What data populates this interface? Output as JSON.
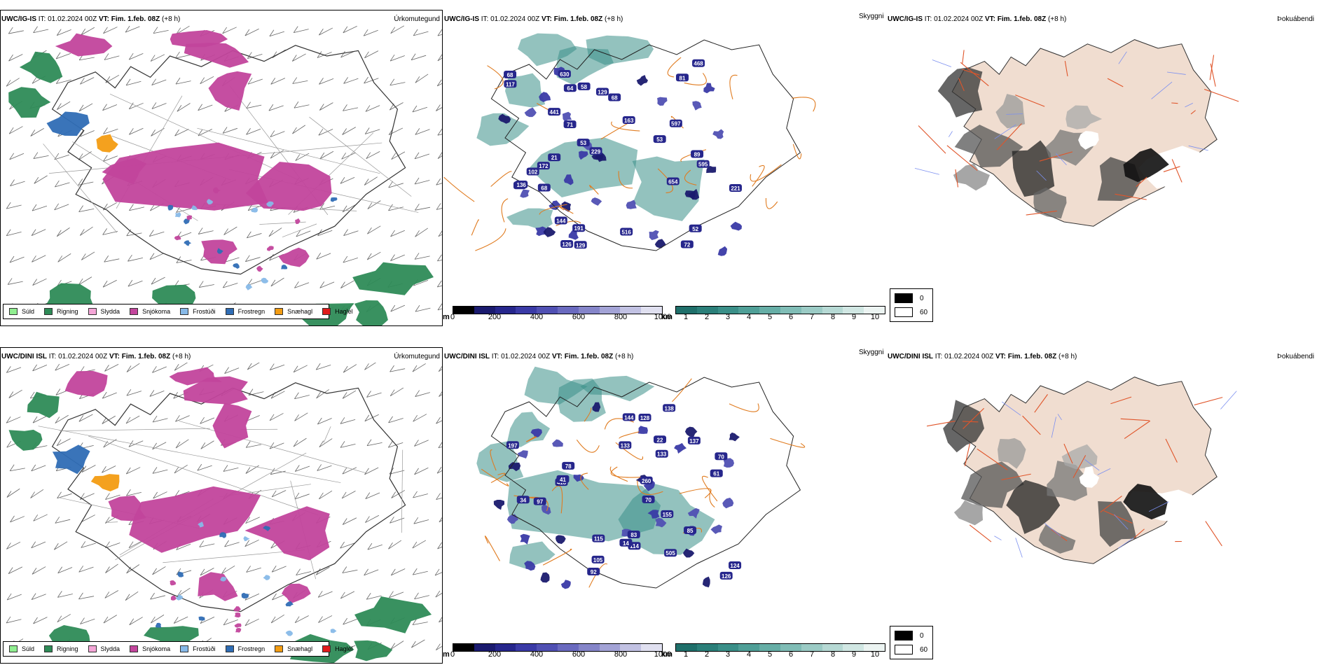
{
  "rows": [
    {
      "precip": {
        "model": "UWC/IG-IS",
        "it": " IT: 01.02.2024 00Z ",
        "vt_label": "VT: Fim. 1.feb. 08Z",
        "lead": " (+8 h)",
        "title_right": "Úrkomutegund"
      },
      "vis": {
        "model": "UWC/IG-IS",
        "it": " IT: 01.02.2024 00Z ",
        "vt_label": "VT: Fim. 1.feb. 08Z",
        "lead": " (+8 h)",
        "title_right": "Skyggni",
        "labels": [
          "102",
          "68",
          "144",
          "163",
          "81",
          "71",
          "89",
          "68",
          "129",
          "53",
          "126",
          "221",
          "229",
          "468",
          "58",
          "129",
          "11",
          "72",
          "68",
          "64",
          "53",
          "172",
          "52",
          "191",
          "597",
          "117",
          "136",
          "516",
          "441",
          "630",
          "595",
          "654",
          "21"
        ]
      },
      "fog": {
        "model": "UWC/IG-IS",
        "it": " IT: 01.02.2024 00Z ",
        "vt_label": "VT: Fim. 1.feb. 08Z",
        "lead": " (+8 h)",
        "title_right": "Þokuábendi"
      }
    },
    {
      "precip": {
        "model": "UWC/DINI ISL",
        "it": " IT: 01.02.2024 00Z ",
        "vt_label": "VT: Fim. 1.feb. 08Z",
        "lead": " (+8 h)",
        "title_right": "Úrkomutegund"
      },
      "vis": {
        "model": "UWC/DINI ISL",
        "it": " IT: 01.02.2024 00Z ",
        "vt_label": "VT: Fim. 1.feb. 08Z",
        "lead": " (+8 h)",
        "title_right": "Skyggni",
        "labels": [
          "83",
          "97",
          "70",
          "78",
          "128",
          "115",
          "144",
          "92",
          "126",
          "133",
          "137",
          "260",
          "197",
          "418",
          "155",
          "70",
          "124",
          "114",
          "505",
          "105",
          "133",
          "138",
          "85",
          "61",
          "41",
          "14",
          "34",
          "22"
        ]
      },
      "fog": {
        "model": "UWC/DINI ISL",
        "it": " IT: 01.02.2024 00Z ",
        "vt_label": "VT: Fim. 1.feb. 08Z",
        "lead": " (+8 h)",
        "title_right": "Þokuábendi"
      }
    }
  ],
  "precip_legend": [
    {
      "label": "Súld",
      "color": "#90ee90"
    },
    {
      "label": "Rigning",
      "color": "#2e8b57"
    },
    {
      "label": "Slydda",
      "color": "#f4a6d7"
    },
    {
      "label": "Snjókoma",
      "color": "#c2459c"
    },
    {
      "label": "Frostúði",
      "color": "#87b9e8"
    },
    {
      "label": "Frostregn",
      "color": "#2f6db5"
    },
    {
      "label": "Snæhagl",
      "color": "#f39c12"
    },
    {
      "label": "Haglél",
      "color": "#e01b1b"
    }
  ],
  "vis_m_scale": {
    "unit": "m",
    "ticks": [
      "0",
      "200",
      "400",
      "600",
      "800",
      "1000"
    ],
    "colors": [
      "#000000",
      "#1a1a6e",
      "#26268c",
      "#3a3aa6",
      "#5050b3",
      "#6a6abf",
      "#8585c9",
      "#a3a3d6",
      "#c2c2e3",
      "#e0e0f0"
    ]
  },
  "vis_km_scale": {
    "unit": "km",
    "ticks": [
      "1",
      "2",
      "3",
      "4",
      "5",
      "6",
      "7",
      "8",
      "9",
      "10"
    ],
    "colors": [
      "#1f6f6a",
      "#2b7f79",
      "#3a8f88",
      "#4f9f97",
      "#66aea6",
      "#80bdb6",
      "#9bcbc5",
      "#b6d9d4",
      "#d1e7e3",
      "#ecf4f2"
    ]
  },
  "fog_legend": {
    "items": [
      {
        "label": "0",
        "color": "#000000"
      },
      {
        "label": "60",
        "color": "#ffffff"
      }
    ]
  }
}
